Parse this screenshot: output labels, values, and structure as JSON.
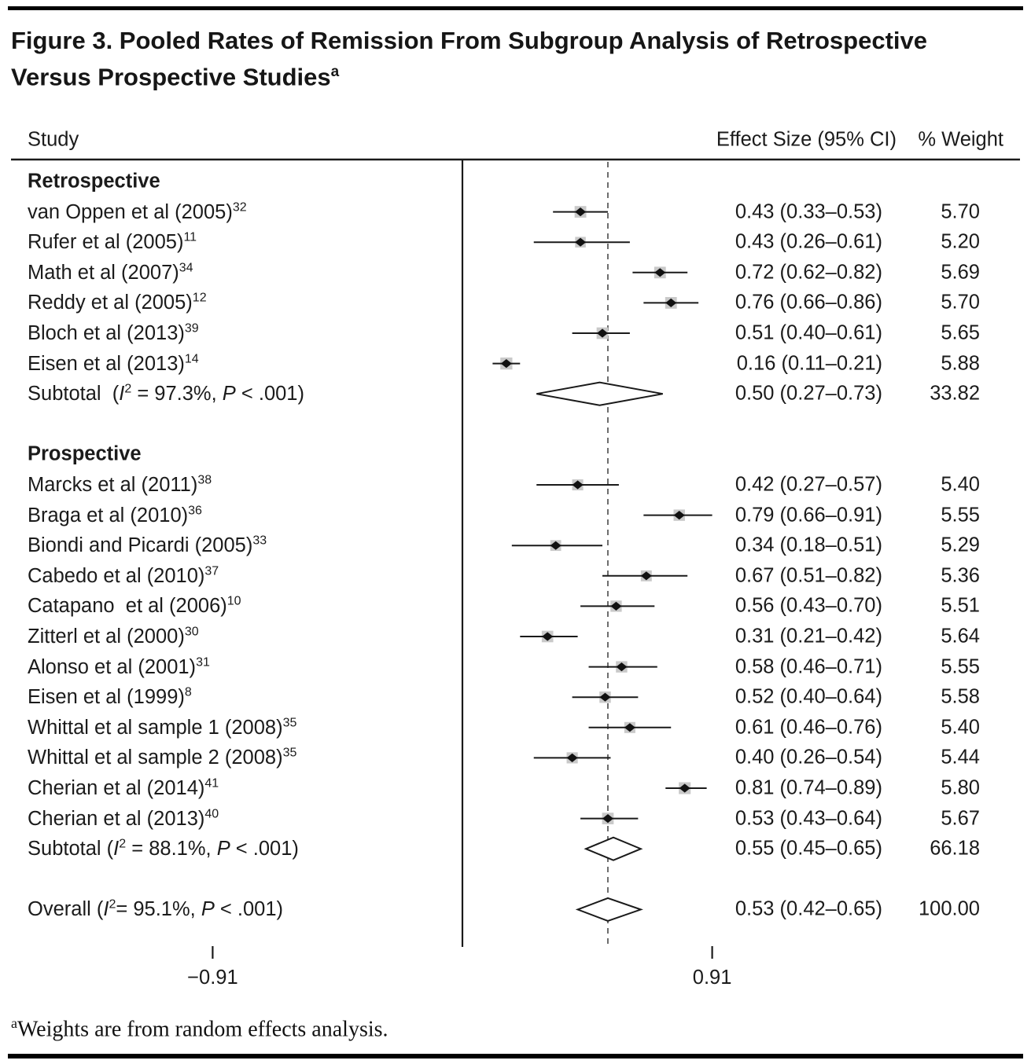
{
  "figure": {
    "title": "Figure 3. Pooled Rates of Remission From Subgroup Analysis of Retrospective Versus Prospective Studies",
    "title_sup": "a",
    "footnote_marker": "a",
    "footnote_text": "Weights are from random effects analysis."
  },
  "columns": {
    "study": "Study",
    "effect": "Effect Size (95% CI)",
    "weight": "% Weight"
  },
  "chart_data": {
    "type": "forest",
    "effect_measure": "Effect Size (95% CI)",
    "axis": {
      "tick_values": [
        -0.91,
        0.91
      ],
      "tick_labels": [
        "−0.91",
        "0.91"
      ],
      "null_line_value": 0,
      "pooled_line_value": 0.53
    },
    "groups": [
      {
        "name": "Retrospective",
        "studies": [
          {
            "label": "van Oppen et al (2005)",
            "sup": "32",
            "est": 0.43,
            "lo": 0.33,
            "hi": 0.53,
            "effect_text": "0.43 (0.33–0.53)",
            "weight": 5.7,
            "weight_text": "5.70"
          },
          {
            "label": "Rufer et al (2005)",
            "sup": "11",
            "est": 0.43,
            "lo": 0.26,
            "hi": 0.61,
            "effect_text": "0.43 (0.26–0.61)",
            "weight": 5.2,
            "weight_text": "5.20"
          },
          {
            "label": "Math et al (2007)",
            "sup": "34",
            "est": 0.72,
            "lo": 0.62,
            "hi": 0.82,
            "effect_text": "0.72 (0.62–0.82)",
            "weight": 5.69,
            "weight_text": "5.69"
          },
          {
            "label": "Reddy et al (2005)",
            "sup": "12",
            "est": 0.76,
            "lo": 0.66,
            "hi": 0.86,
            "effect_text": "0.76 (0.66–0.86)",
            "weight": 5.7,
            "weight_text": "5.70"
          },
          {
            "label": "Bloch et al (2013)",
            "sup": "39",
            "est": 0.51,
            "lo": 0.4,
            "hi": 0.61,
            "effect_text": "0.51 (0.40–0.61)",
            "weight": 5.65,
            "weight_text": "5.65"
          },
          {
            "label": "Eisen et al (2013)",
            "sup": "14",
            "est": 0.16,
            "lo": 0.11,
            "hi": 0.21,
            "effect_text": "0.16 (0.11–0.21)",
            "weight": 5.88,
            "weight_text": "5.88"
          }
        ],
        "subtotal": {
          "label_parts": [
            {
              "t": "Subtotal  ("
            },
            {
              "t": "I",
              "s": "i"
            },
            {
              "t": "2",
              "s": "sup"
            },
            {
              "t": " = 97.3%, "
            },
            {
              "t": "P",
              "s": "i"
            },
            {
              "t": " < .001)"
            }
          ],
          "est": 0.5,
          "lo": 0.27,
          "hi": 0.73,
          "effect_text": "0.50 (0.27–0.73)",
          "weight_text": "33.82"
        }
      },
      {
        "name": "Prospective",
        "studies": [
          {
            "label": "Marcks et al (2011)",
            "sup": "38",
            "est": 0.42,
            "lo": 0.27,
            "hi": 0.57,
            "effect_text": "0.42 (0.27–0.57)",
            "weight": 5.4,
            "weight_text": "5.40"
          },
          {
            "label": "Braga et al (2010)",
            "sup": "36",
            "est": 0.79,
            "lo": 0.66,
            "hi": 0.91,
            "effect_text": "0.79 (0.66–0.91)",
            "weight": 5.55,
            "weight_text": "5.55"
          },
          {
            "label": "Biondi and Picardi (2005)",
            "sup": "33",
            "est": 0.34,
            "lo": 0.18,
            "hi": 0.51,
            "effect_text": "0.34 (0.18–0.51)",
            "weight": 5.29,
            "weight_text": "5.29"
          },
          {
            "label": "Cabedo et al (2010)",
            "sup": "37",
            "est": 0.67,
            "lo": 0.51,
            "hi": 0.82,
            "effect_text": "0.67 (0.51–0.82)",
            "weight": 5.36,
            "weight_text": "5.36"
          },
          {
            "label": "Catapano  et al (2006)",
            "sup": "10",
            "est": 0.56,
            "lo": 0.43,
            "hi": 0.7,
            "effect_text": "0.56 (0.43–0.70)",
            "weight": 5.51,
            "weight_text": "5.51"
          },
          {
            "label": "Zitterl et al (2000)",
            "sup": "30",
            "est": 0.31,
            "lo": 0.21,
            "hi": 0.42,
            "effect_text": "0.31 (0.21–0.42)",
            "weight": 5.64,
            "weight_text": "5.64"
          },
          {
            "label": "Alonso et al (2001)",
            "sup": "31",
            "est": 0.58,
            "lo": 0.46,
            "hi": 0.71,
            "effect_text": "0.58 (0.46–0.71)",
            "weight": 5.55,
            "weight_text": "5.55"
          },
          {
            "label": "Eisen et al (1999)",
            "sup": "8",
            "est": 0.52,
            "lo": 0.4,
            "hi": 0.64,
            "effect_text": "0.52 (0.40–0.64)",
            "weight": 5.58,
            "weight_text": "5.58"
          },
          {
            "label": "Whittal et al sample 1 (2008)",
            "sup": "35",
            "est": 0.61,
            "lo": 0.46,
            "hi": 0.76,
            "effect_text": "0.61 (0.46–0.76)",
            "weight": 5.4,
            "weight_text": "5.40"
          },
          {
            "label": "Whittal et al sample 2 (2008)",
            "sup": "35",
            "est": 0.4,
            "lo": 0.26,
            "hi": 0.54,
            "effect_text": "0.40 (0.26–0.54)",
            "weight": 5.44,
            "weight_text": "5.44"
          },
          {
            "label": "Cherian et al (2014)",
            "sup": "41",
            "est": 0.81,
            "lo": 0.74,
            "hi": 0.89,
            "effect_text": "0.81 (0.74–0.89)",
            "weight": 5.8,
            "weight_text": "5.80"
          },
          {
            "label": "Cherian et al (2013)",
            "sup": "40",
            "est": 0.53,
            "lo": 0.43,
            "hi": 0.64,
            "effect_text": "0.53 (0.43–0.64)",
            "weight": 5.67,
            "weight_text": "5.67"
          }
        ],
        "subtotal": {
          "label_parts": [
            {
              "t": "Subtotal ("
            },
            {
              "t": "I",
              "s": "i"
            },
            {
              "t": "2",
              "s": "sup"
            },
            {
              "t": " = 88.1%, "
            },
            {
              "t": "P",
              "s": "i"
            },
            {
              "t": " < .001)"
            }
          ],
          "est": 0.55,
          "lo": 0.45,
          "hi": 0.65,
          "effect_text": "0.55 (0.45–0.65)",
          "weight_text": "66.18"
        }
      }
    ],
    "overall": {
      "label_parts": [
        {
          "t": "Overall ("
        },
        {
          "t": "I",
          "s": "i"
        },
        {
          "t": "2",
          "s": "sup"
        },
        {
          "t": "= 95.1%, "
        },
        {
          "t": "P",
          "s": "i"
        },
        {
          "t": " < .001)"
        }
      ],
      "est": 0.53,
      "lo": 0.42,
      "hi": 0.65,
      "effect_text": "0.53 (0.42–0.65)",
      "weight_text": "100.00"
    },
    "colors": {
      "line": "#1a1a1a",
      "marker": "#111111",
      "weight_box": "#c9c9c9",
      "dashed_line": "#4a4a4a"
    }
  }
}
